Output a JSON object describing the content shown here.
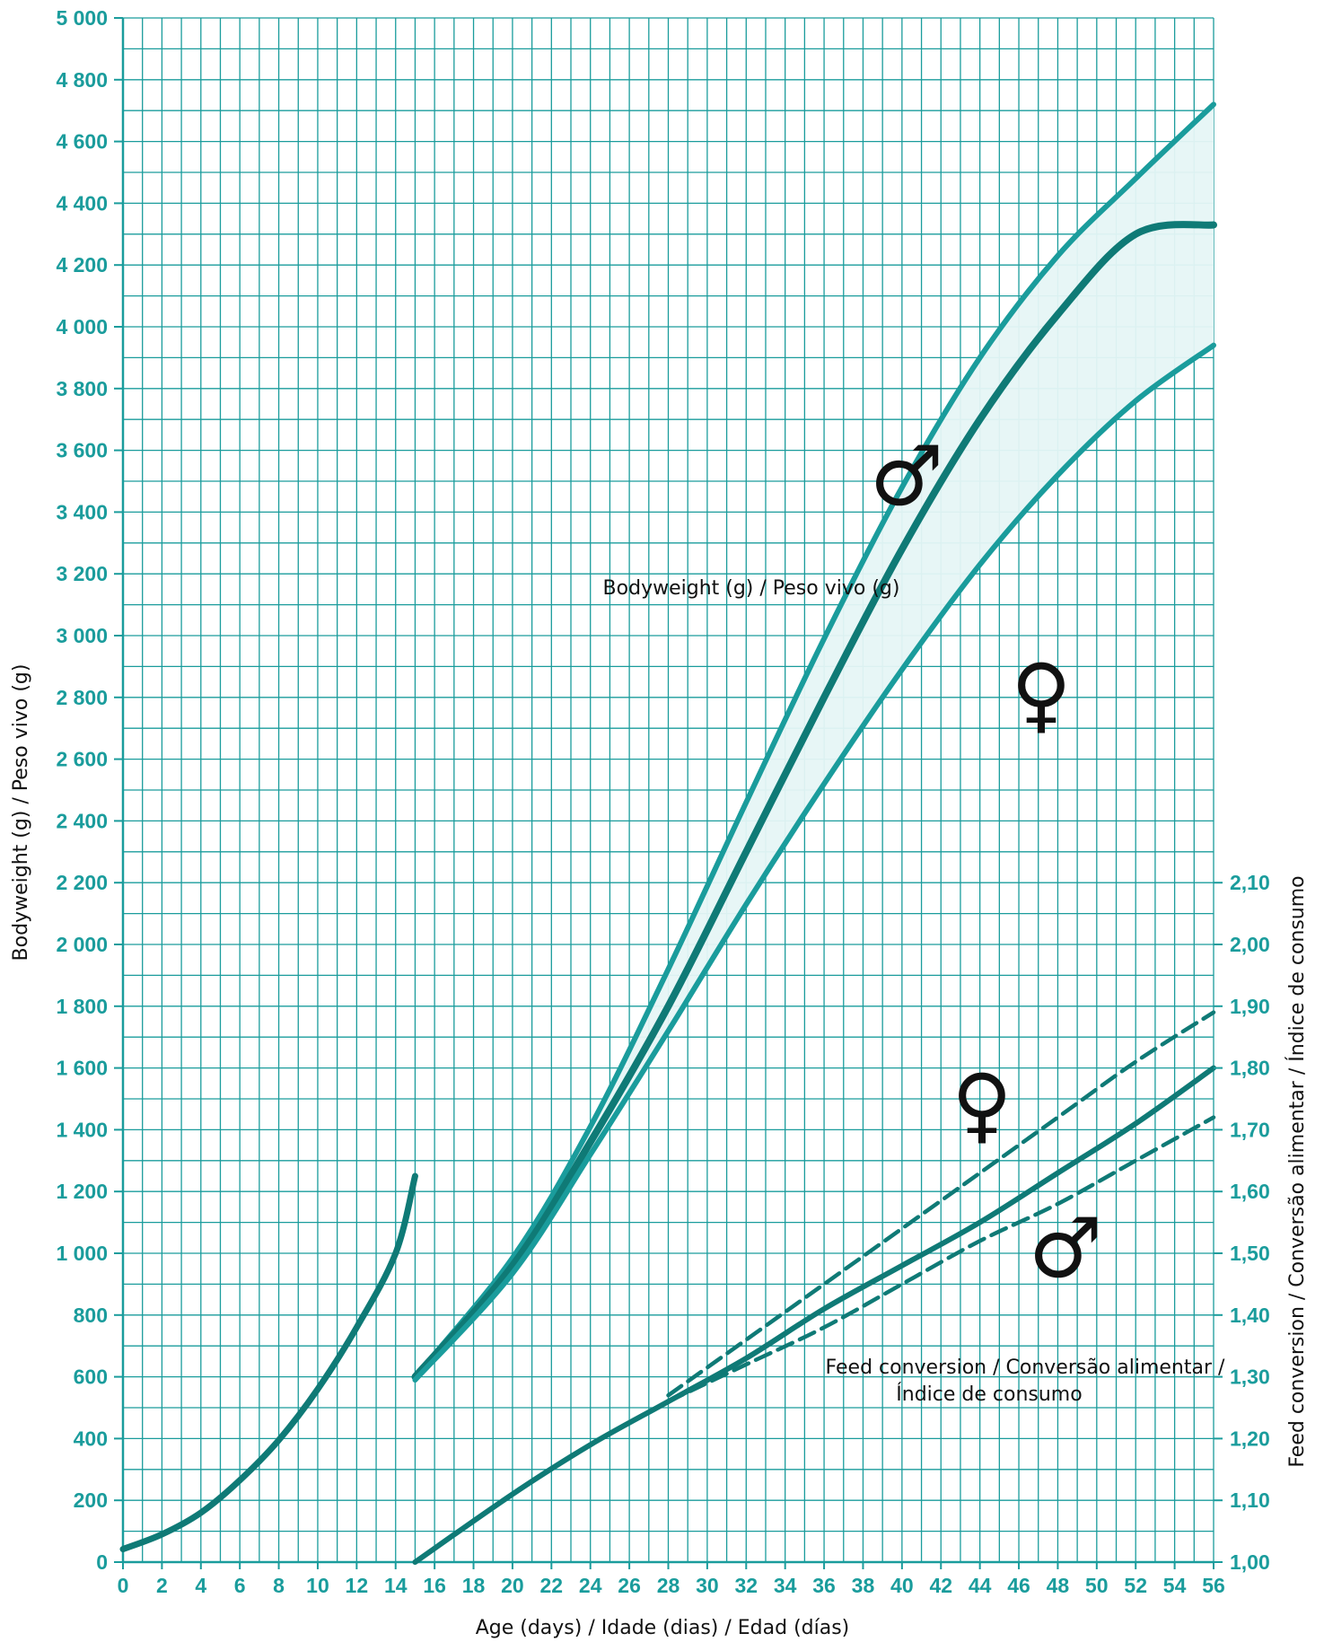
{
  "chart_data": {
    "type": "line",
    "xlabel": "Age (days) / Idade (dias) / Edad (días)",
    "ylabel": "Bodyweight (g) /  Peso vivo (g)",
    "y2label": "Feed conversion / Conversão alimentar / Índice de consumo",
    "xlim": [
      0,
      56
    ],
    "ylim": [
      0,
      5000
    ],
    "y2lim": [
      1.0,
      2.1
    ],
    "grid": true,
    "x_ticks": [
      "0",
      "2",
      "4",
      "6",
      "8",
      "10",
      "12",
      "14",
      "16",
      "18",
      "20",
      "22",
      "24",
      "26",
      "28",
      "30",
      "32",
      "34",
      "36",
      "38",
      "40",
      "42",
      "44",
      "46",
      "48",
      "50",
      "52",
      "54",
      "56"
    ],
    "y_ticks": [
      "0",
      "200",
      "400",
      "600",
      "800",
      "1 000",
      "1 200",
      "1 400",
      "1 600",
      "1 800",
      "2 000",
      "2 200",
      "2 400",
      "2 600",
      "2 800",
      "3 000",
      "3 200",
      "3 400",
      "3 600",
      "3 800",
      "4 000",
      "4 200",
      "4 400",
      "4 600",
      "4 800",
      "5 000"
    ],
    "y2_ticks": [
      "1,00",
      "1,10",
      "1,20",
      "1,30",
      "1,40",
      "1,50",
      "1,60",
      "1,70",
      "1,80",
      "1,90",
      "2,00",
      "2,10"
    ],
    "annotations": {
      "bodyweight": "Bodyweight (g) / Peso vivo (g)",
      "feed_conversion_line1": "Feed conversion / Conversão alimentar /",
      "feed_conversion_line2": "Índice de consumo"
    },
    "symbols": {
      "male": "♂",
      "female": "♀"
    },
    "colors": {
      "grid": "#1a9c9c",
      "bodyweight_bounds": "#1a9c9c",
      "bodyweight_mean": "#0f7a76",
      "band_fill": "#e6f6f6",
      "feed_conversion": "#0f7a76"
    },
    "series": [
      {
        "axis": "left",
        "style": "solid-thick",
        "x": [
          0,
          2,
          4,
          6,
          8,
          10,
          12,
          14,
          15
        ],
        "y": [
          42,
          90,
          160,
          265,
          395,
          560,
          760,
          1000,
          1250
        ]
      },
      {
        "axis": "left",
        "style": "solid-upper",
        "x": [
          15,
          20,
          24,
          28,
          32,
          36,
          40,
          44,
          48,
          52,
          56
        ],
        "y": [
          600,
          985,
          1410,
          1920,
          2460,
          2990,
          3480,
          3900,
          4230,
          4480,
          4720
        ]
      },
      {
        "axis": "left",
        "style": "solid-mean",
        "x": [
          15,
          20,
          24,
          28,
          32,
          36,
          40,
          44,
          48,
          52,
          56
        ],
        "y": [
          600,
          960,
          1360,
          1800,
          2300,
          2800,
          3280,
          3700,
          4040,
          4300,
          4330
        ]
      },
      {
        "axis": "left",
        "style": "solid-lower",
        "x": [
          15,
          20,
          24,
          28,
          32,
          36,
          40,
          44,
          48,
          52,
          56
        ],
        "y": [
          590,
          935,
          1320,
          1720,
          2130,
          2520,
          2890,
          3230,
          3520,
          3760,
          3940
        ]
      },
      {
        "axis": "right",
        "style": "solid",
        "x": [
          15,
          20,
          24,
          28,
          32,
          36,
          40,
          44,
          48,
          52,
          56
        ],
        "y": [
          1.0,
          1.11,
          1.19,
          1.26,
          1.33,
          1.41,
          1.48,
          1.55,
          1.63,
          1.71,
          1.8
        ]
      },
      {
        "axis": "right",
        "style": "dashed-upper",
        "x": [
          28,
          32,
          36,
          40,
          44,
          48,
          52,
          56
        ],
        "y": [
          1.27,
          1.36,
          1.45,
          1.54,
          1.63,
          1.72,
          1.81,
          1.89
        ]
      },
      {
        "axis": "right",
        "style": "dashed-lower",
        "x": [
          28,
          32,
          36,
          40,
          44,
          48,
          52,
          56
        ],
        "y": [
          1.26,
          1.32,
          1.38,
          1.45,
          1.52,
          1.58,
          1.65,
          1.72
        ]
      }
    ]
  }
}
